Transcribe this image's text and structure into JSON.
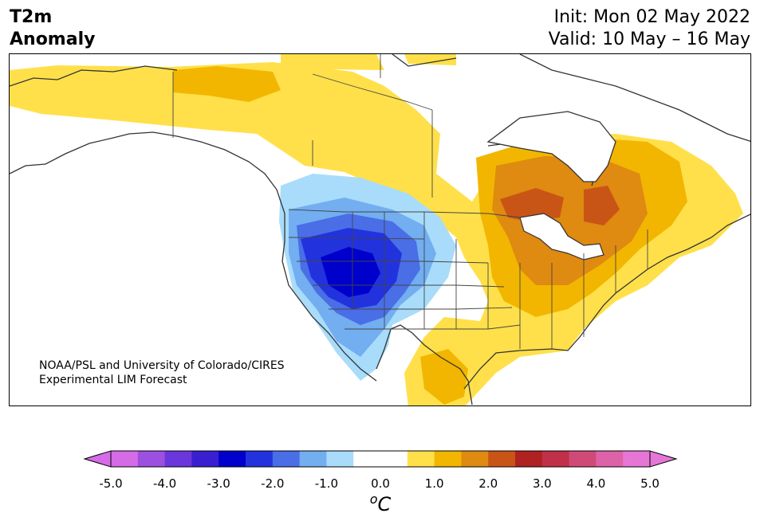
{
  "header": {
    "title_line1": "T2m",
    "title_line2": "Anomaly",
    "init_text": "Init: Mon 02 May 2022",
    "valid_text": "Valid: 10 May – 16 May"
  },
  "credit": {
    "line1": "NOAA/PSL and University of Colorado/CIRES",
    "line2": "Experimental LIM Forecast"
  },
  "colorbar": {
    "unit_base": "C",
    "unit_sup": "o",
    "ticks": [
      "-5.0",
      "-4.0",
      "-3.0",
      "-2.0",
      "-1.0",
      "0.0",
      "1.0",
      "2.0",
      "3.0",
      "4.0",
      "5.0"
    ],
    "tick_values": [
      -5,
      -4,
      -3,
      -2,
      -1,
      0,
      1,
      2,
      3,
      4,
      5
    ],
    "range": [
      -5,
      5
    ],
    "extend": "both",
    "colors": [
      "#d66be8",
      "#9b50e0",
      "#6a37dc",
      "#3a1fd0",
      "#0000cc",
      "#2233dd",
      "#4a6ee6",
      "#72aef0",
      "#a8dcfa",
      "#ffffff",
      "#ffffff",
      "#ffe04a",
      "#f2b600",
      "#df8a10",
      "#c85516",
      "#b02222",
      "#c03048",
      "#d04a78",
      "#dd63a8",
      "#e676d6"
    ],
    "under_color": "#d66be8",
    "over_color": "#e676d6"
  },
  "map": {
    "region": "North America",
    "palette": {
      "land": "#ffffff",
      "ocean": "#ffffff",
      "coast": "#333333",
      "borders": "#444444",
      "lakes": "#ffffff"
    }
  }
}
